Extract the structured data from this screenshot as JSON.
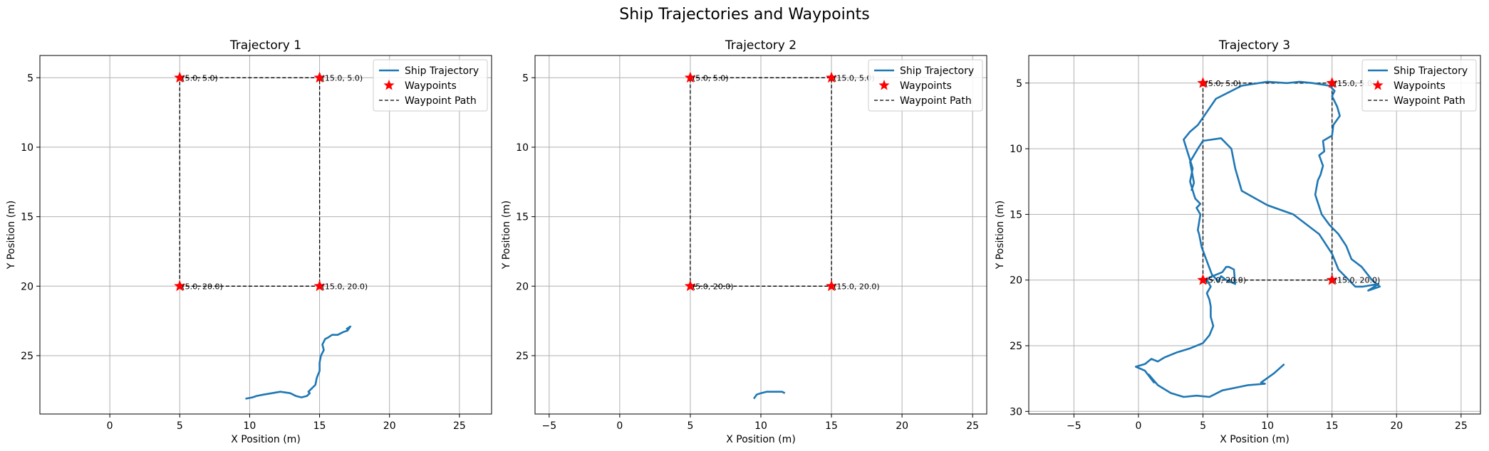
{
  "figure": {
    "title": "Ship Trajectories and Waypoints"
  },
  "colors": {
    "trajectory": "#1f77b4",
    "waypoints": "#ff0000",
    "path": "#000000",
    "grid": "#b0b0b0"
  },
  "legend": {
    "placement": "top-right",
    "entries": [
      "Ship Trajectory",
      "Waypoints",
      "Waypoint Path"
    ]
  },
  "chart_data": [
    {
      "type": "line",
      "title": "Trajectory 1",
      "xlabel": "X Position (m)",
      "ylabel": "Y Position (m)",
      "xlim": [
        -5,
        27.3
      ],
      "ylim": [
        29.2,
        3.4
      ],
      "y_inverted": true,
      "grid": true,
      "xticks": [
        0,
        5,
        10,
        15,
        20,
        25
      ],
      "yticks": [
        5,
        10,
        15,
        20,
        25
      ],
      "waypoints": [
        [
          5,
          5
        ],
        [
          15,
          5
        ],
        [
          15,
          20
        ],
        [
          5,
          20
        ]
      ],
      "waypoint_labels": [
        "(5.0, 5.0)",
        "(15.0, 5.0)",
        "(15.0, 20.0)",
        "(5.0, 20.0)"
      ],
      "series": [
        {
          "name": "Ship Trajectory",
          "x": [
            9.7,
            10.2,
            10.5,
            11.0,
            11.6,
            12.2,
            12.9,
            13.3,
            13.7,
            14.1,
            14.3,
            14.2,
            14.4,
            14.7,
            14.8,
            15.0,
            15.0,
            15.1,
            15.3,
            15.2,
            15.4,
            15.6,
            15.9,
            16.3,
            16.7,
            17.0,
            17.2,
            16.9
          ],
          "y": [
            28.1,
            28.0,
            27.9,
            27.8,
            27.7,
            27.6,
            27.7,
            27.9,
            28.0,
            27.9,
            27.7,
            27.6,
            27.4,
            27.1,
            26.6,
            26.1,
            25.5,
            25.0,
            24.6,
            24.2,
            23.8,
            23.7,
            23.5,
            23.5,
            23.3,
            23.2,
            22.9,
            23.1
          ]
        }
      ]
    },
    {
      "type": "line",
      "title": "Trajectory 2",
      "xlabel": "X Position (m)",
      "ylabel": "Y Position (m)",
      "xlim": [
        -6,
        26
      ],
      "ylim": [
        29.2,
        3.4
      ],
      "y_inverted": true,
      "grid": true,
      "xticks": [
        -5,
        0,
        5,
        10,
        15,
        20,
        25
      ],
      "yticks": [
        5,
        10,
        15,
        20,
        25
      ],
      "waypoints": [
        [
          5,
          5
        ],
        [
          15,
          5
        ],
        [
          15,
          20
        ],
        [
          5,
          20
        ]
      ],
      "waypoint_labels": [
        "(5.0, 5.0)",
        "(15.0, 5.0)",
        "(15.0, 20.0)",
        "(5.0, 20.0)"
      ],
      "series": [
        {
          "name": "Ship Trajectory",
          "x": [
            9.5,
            9.7,
            10.0,
            10.4,
            10.8,
            11.2,
            11.5,
            11.7
          ],
          "y": [
            28.1,
            27.8,
            27.7,
            27.6,
            27.6,
            27.6,
            27.6,
            27.7
          ]
        }
      ]
    },
    {
      "type": "line",
      "title": "Trajectory 3",
      "xlabel": "X Position (m)",
      "ylabel": "Y Position (m)",
      "xlim": [
        -8.5,
        26.5
      ],
      "ylim": [
        30.2,
        2.9
      ],
      "y_inverted": true,
      "grid": true,
      "xticks": [
        -5,
        0,
        5,
        10,
        15,
        20,
        25
      ],
      "yticks": [
        5,
        10,
        15,
        20,
        25,
        30
      ],
      "waypoints": [
        [
          5,
          5
        ],
        [
          15,
          5
        ],
        [
          15,
          20
        ],
        [
          5,
          20
        ]
      ],
      "waypoint_labels": [
        "(5.0, 5.0)",
        "(15.0, 5.0)",
        "(15.0, 20.0)",
        "(5.0, 20.0)"
      ],
      "series": [
        {
          "name": "Ship Trajectory",
          "x": [
            11.3,
            10.5,
            9.5,
            9.8,
            8.5,
            7.5,
            6.5,
            5.5,
            4.5,
            3.5,
            2.5,
            1.5,
            0.8,
            1.2,
            0.5,
            -0.2,
            0.5,
            1.0,
            1.5,
            2.0,
            3.0,
            4.0,
            5.0,
            5.5,
            5.8,
            5.6,
            5.6,
            5.5,
            5.3,
            5.6,
            5.3,
            5.5,
            6.0,
            6.5,
            6.8,
            7.0,
            7.4,
            7.5,
            6.8,
            6.4,
            6.2,
            5.7,
            5.2,
            4.9,
            4.7,
            4.6,
            4.8,
            4.5,
            4.8,
            4.4,
            4.3,
            4.0,
            4.2,
            3.5,
            4.0,
            4.6,
            6.0,
            8.0,
            10.0,
            11.5,
            12.5,
            13.5,
            14.8,
            15.2,
            15.0,
            15.4,
            15.6,
            15.1,
            15.0,
            14.3,
            14.4,
            14.0,
            14.3,
            14.1,
            13.9,
            13.7,
            14.2,
            14.8,
            15.5,
            16.1,
            16.5,
            17.3,
            18.1,
            18.7,
            17.8,
            18.6,
            17.4,
            16.8,
            15.5,
            15.0,
            14.0,
            12.0,
            10.0,
            8.0,
            7.5,
            7.2,
            6.4,
            5.0,
            4.6,
            4.0,
            4.3,
            4.1
          ],
          "y": [
            26.4,
            27.1,
            27.8,
            27.9,
            28.0,
            28.2,
            28.4,
            28.9,
            28.8,
            28.9,
            28.6,
            28.0,
            27.2,
            27.8,
            26.9,
            26.6,
            26.4,
            26.0,
            26.2,
            25.9,
            25.5,
            25.2,
            24.8,
            24.2,
            23.5,
            22.8,
            22.0,
            21.5,
            21.0,
            20.5,
            20.0,
            19.8,
            19.6,
            19.4,
            19.0,
            19.0,
            19.2,
            20.3,
            20.0,
            19.7,
            20.1,
            19.6,
            18.3,
            17.5,
            16.5,
            16.2,
            15.0,
            14.5,
            14.2,
            13.8,
            13.5,
            12.5,
            11.5,
            9.3,
            8.7,
            8.2,
            6.2,
            5.2,
            4.9,
            5.0,
            4.9,
            5.0,
            5.2,
            5.6,
            6.0,
            6.8,
            7.5,
            8.2,
            9.0,
            9.4,
            10.2,
            10.5,
            11.3,
            12.0,
            12.4,
            13.5,
            15.0,
            15.8,
            16.5,
            17.4,
            18.4,
            19.0,
            20.0,
            20.5,
            20.8,
            20.3,
            20.5,
            20.5,
            19.2,
            18.0,
            16.5,
            15.0,
            14.3,
            13.2,
            11.5,
            10.0,
            9.2,
            9.4,
            10.0,
            11.0,
            12.6,
            13.2
          ]
        }
      ]
    }
  ]
}
